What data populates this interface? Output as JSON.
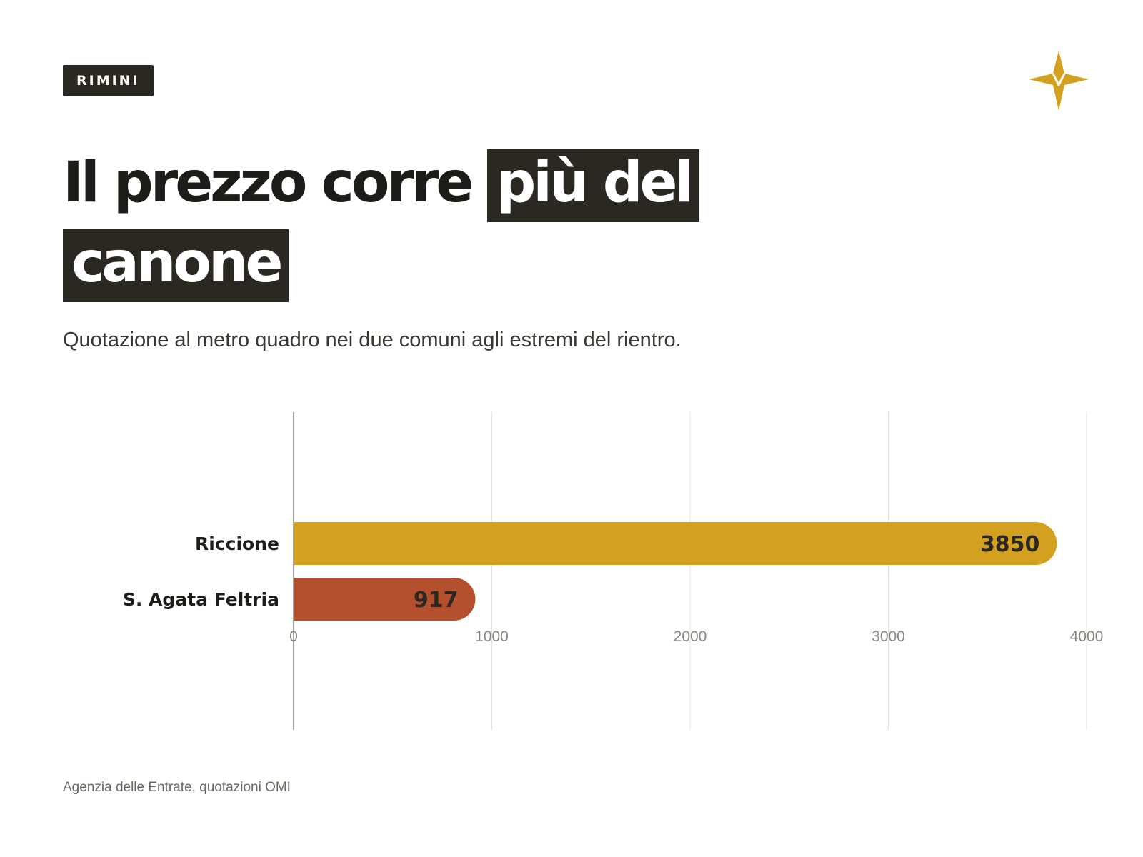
{
  "header": {
    "tag": "RIMINI",
    "title_plain": "Il prezzo corre",
    "title_highlight_1": "più del",
    "title_highlight_2": "canone",
    "subtitle": "Quotazione al metro quadro nei due comuni agli estremi del rientro."
  },
  "logo": {
    "icon": "compass-star-icon",
    "color": "#d4a020"
  },
  "colors": {
    "accent_gold": "#d4a020",
    "accent_rust": "#b5502f",
    "dark": "#2b2822",
    "grid": "#e6e3de",
    "axis": "#8a8780",
    "tick_text": "#8a8780"
  },
  "chart_data": {
    "type": "bar",
    "orientation": "horizontal",
    "categories": [
      "Riccione",
      "S. Agata Feltria"
    ],
    "values": [
      3850,
      917
    ],
    "bar_colors": [
      "#d4a020",
      "#b5502f"
    ],
    "xlim": [
      0,
      4000
    ],
    "xticks": [
      0,
      1000,
      2000,
      3000,
      4000
    ],
    "grid": true,
    "data_labels": [
      "3850",
      "917"
    ]
  },
  "footer": {
    "source": "Agenzia delle Entrate, quotazioni OMI"
  }
}
